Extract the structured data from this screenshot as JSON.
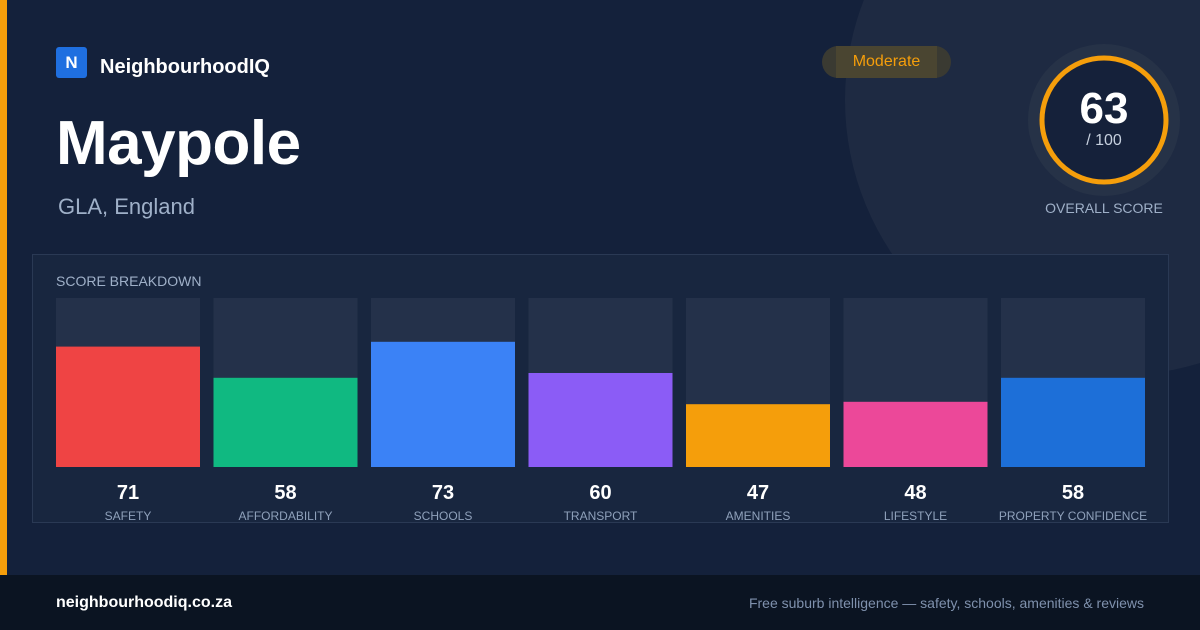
{
  "brand": {
    "logo_letter": "N",
    "name": "NeighbourhoodIQ"
  },
  "place": {
    "title": "Maypole",
    "subtitle": "GLA, England"
  },
  "badge": {
    "label": "Moderate",
    "color": "#f59e0b"
  },
  "overall": {
    "score": "63",
    "max_label": "/ 100",
    "label": "OVERALL SCORE",
    "fraction": 0.63
  },
  "breakdown": {
    "title": "SCORE BREAKDOWN"
  },
  "chart_data": {
    "type": "bar",
    "title": "SCORE BREAKDOWN",
    "categories": [
      "SAFETY",
      "AFFORDABILITY",
      "SCHOOLS",
      "TRANSPORT",
      "AMENITIES",
      "LIFESTYLE",
      "PROPERTY CONFIDENCE"
    ],
    "values": [
      71,
      58,
      73,
      60,
      47,
      48,
      58
    ],
    "value_labels": [
      "71",
      "58",
      "73",
      "60",
      "47",
      "48",
      "58"
    ],
    "colors": [
      "#ef4444",
      "#10b981",
      "#3b82f6",
      "#8b5cf6",
      "#f59e0b",
      "#ec4899",
      "#1d6fd8"
    ],
    "ylim": [
      0,
      100
    ],
    "grid": false,
    "legend": "none"
  },
  "footer": {
    "site": "neighbourhoodiq.co.za",
    "tagline": "Free suburb intelligence — safety, schools, amenities & reviews"
  }
}
